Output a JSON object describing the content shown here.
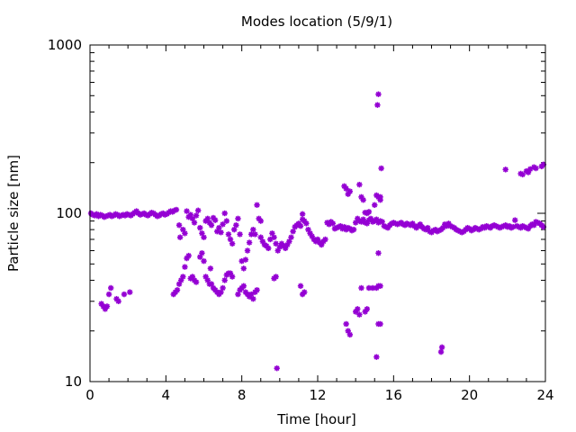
{
  "chart_data": {
    "type": "scatter",
    "title": "Modes location (5/9/1)",
    "xlabel": "Time [hour]",
    "ylabel": "Particle size [nm]",
    "xlim": [
      0,
      24
    ],
    "ylim": [
      10,
      1000
    ],
    "y_scale": "log",
    "x_ticks": [
      0,
      4,
      8,
      12,
      16,
      20,
      24
    ],
    "x_tick_labels": [
      "0",
      "4",
      "8",
      "12",
      "16",
      "20",
      "24"
    ],
    "y_ticks": [
      10,
      100,
      1000
    ],
    "y_tick_labels": [
      "10",
      "100",
      "1000"
    ],
    "grid": false,
    "marker_color": "#9400d3",
    "points": [
      [
        0.05,
        100
      ],
      [
        0.15,
        98
      ],
      [
        0.25,
        97
      ],
      [
        0.35,
        99
      ],
      [
        0.45,
        96
      ],
      [
        0.55,
        98
      ],
      [
        0.65,
        97
      ],
      [
        0.75,
        95
      ],
      [
        0.85,
        96
      ],
      [
        0.95,
        97
      ],
      [
        1.05,
        98
      ],
      [
        1.15,
        96
      ],
      [
        1.25,
        97
      ],
      [
        1.35,
        99
      ],
      [
        1.45,
        98
      ],
      [
        1.55,
        96
      ],
      [
        1.65,
        97
      ],
      [
        1.75,
        98
      ],
      [
        1.85,
        97
      ],
      [
        1.95,
        99
      ],
      [
        2.05,
        98
      ],
      [
        2.15,
        97
      ],
      [
        2.25,
        99
      ],
      [
        2.35,
        101
      ],
      [
        2.45,
        103
      ],
      [
        2.55,
        100
      ],
      [
        2.65,
        98
      ],
      [
        2.75,
        99
      ],
      [
        2.85,
        100
      ],
      [
        2.95,
        98
      ],
      [
        3.05,
        97
      ],
      [
        3.15,
        99
      ],
      [
        3.25,
        101
      ],
      [
        3.35,
        100
      ],
      [
        3.45,
        98
      ],
      [
        3.55,
        96
      ],
      [
        3.65,
        97
      ],
      [
        3.75,
        99
      ],
      [
        3.85,
        100
      ],
      [
        3.95,
        98
      ],
      [
        4.05,
        99
      ],
      [
        4.15,
        101
      ],
      [
        4.25,
        103
      ],
      [
        4.35,
        102
      ],
      [
        4.45,
        104
      ],
      [
        4.55,
        105
      ],
      [
        0.6,
        29
      ],
      [
        0.7,
        28
      ],
      [
        0.8,
        27
      ],
      [
        0.9,
        28
      ],
      [
        1.0,
        33
      ],
      [
        1.1,
        36
      ],
      [
        1.4,
        31
      ],
      [
        1.5,
        30
      ],
      [
        1.8,
        33
      ],
      [
        2.1,
        34
      ],
      [
        4.4,
        33
      ],
      [
        4.5,
        34
      ],
      [
        4.6,
        35
      ],
      [
        4.7,
        38
      ],
      [
        4.8,
        40
      ],
      [
        4.9,
        42
      ],
      [
        5.0,
        48
      ],
      [
        5.1,
        54
      ],
      [
        5.2,
        56
      ],
      [
        5.3,
        41
      ],
      [
        5.4,
        42
      ],
      [
        5.5,
        40
      ],
      [
        5.6,
        39
      ],
      [
        4.7,
        85
      ],
      [
        4.75,
        72
      ],
      [
        4.9,
        80
      ],
      [
        5.0,
        76
      ],
      [
        5.1,
        103
      ],
      [
        5.2,
        95
      ],
      [
        5.3,
        98
      ],
      [
        5.4,
        93
      ],
      [
        5.5,
        88
      ],
      [
        5.6,
        97
      ],
      [
        5.7,
        104
      ],
      [
        5.8,
        82
      ],
      [
        5.9,
        76
      ],
      [
        6.0,
        72
      ],
      [
        5.8,
        55
      ],
      [
        5.9,
        58
      ],
      [
        6.0,
        52
      ],
      [
        6.1,
        42
      ],
      [
        6.2,
        40
      ],
      [
        6.3,
        38
      ],
      [
        6.35,
        47
      ],
      [
        6.4,
        38
      ],
      [
        6.5,
        36
      ],
      [
        6.6,
        35
      ],
      [
        6.7,
        34
      ],
      [
        6.8,
        33
      ],
      [
        6.9,
        34
      ],
      [
        7.0,
        36
      ],
      [
        7.1,
        40
      ],
      [
        7.2,
        43
      ],
      [
        7.3,
        44
      ],
      [
        6.1,
        90
      ],
      [
        6.2,
        93
      ],
      [
        6.3,
        88
      ],
      [
        6.4,
        85
      ],
      [
        6.5,
        94
      ],
      [
        6.6,
        91
      ],
      [
        6.7,
        78
      ],
      [
        6.8,
        82
      ],
      [
        6.9,
        77
      ],
      [
        7.0,
        86
      ],
      [
        7.1,
        100
      ],
      [
        7.2,
        90
      ],
      [
        7.3,
        75
      ],
      [
        7.4,
        70
      ],
      [
        7.5,
        66
      ],
      [
        7.4,
        44
      ],
      [
        7.5,
        42
      ],
      [
        7.6,
        80
      ],
      [
        7.7,
        85
      ],
      [
        7.8,
        93
      ],
      [
        7.9,
        75
      ],
      [
        8.0,
        52
      ],
      [
        8.1,
        47
      ],
      [
        8.2,
        53
      ],
      [
        7.8,
        33
      ],
      [
        7.9,
        35
      ],
      [
        8.0,
        36
      ],
      [
        8.1,
        37
      ],
      [
        8.2,
        34
      ],
      [
        8.3,
        33
      ],
      [
        8.4,
        32
      ],
      [
        8.5,
        33
      ],
      [
        8.6,
        31
      ],
      [
        8.7,
        34
      ],
      [
        8.8,
        35
      ],
      [
        8.3,
        60
      ],
      [
        8.4,
        67
      ],
      [
        8.5,
        75
      ],
      [
        8.6,
        80
      ],
      [
        8.7,
        75
      ],
      [
        8.8,
        112
      ],
      [
        8.9,
        93
      ],
      [
        9.0,
        90
      ],
      [
        9.0,
        72
      ],
      [
        9.1,
        68
      ],
      [
        9.2,
        65
      ],
      [
        9.3,
        64
      ],
      [
        9.4,
        62
      ],
      [
        9.5,
        70
      ],
      [
        9.6,
        76
      ],
      [
        9.7,
        72
      ],
      [
        9.8,
        66
      ],
      [
        9.9,
        60
      ],
      [
        10.0,
        63
      ],
      [
        10.1,
        66
      ],
      [
        10.2,
        64
      ],
      [
        10.3,
        62
      ],
      [
        10.4,
        65
      ],
      [
        10.5,
        68
      ],
      [
        10.6,
        72
      ],
      [
        10.7,
        78
      ],
      [
        10.8,
        83
      ],
      [
        10.9,
        85
      ],
      [
        11.0,
        87
      ],
      [
        11.1,
        84
      ],
      [
        11.2,
        92
      ],
      [
        11.3,
        90
      ],
      [
        11.4,
        87
      ],
      [
        11.5,
        80
      ],
      [
        11.6,
        76
      ],
      [
        11.7,
        73
      ],
      [
        11.8,
        70
      ],
      [
        11.9,
        68
      ],
      [
        12.0,
        70
      ],
      [
        12.1,
        67
      ],
      [
        12.2,
        65
      ],
      [
        12.3,
        68
      ],
      [
        12.4,
        70
      ],
      [
        9.7,
        41
      ],
      [
        9.8,
        42
      ],
      [
        9.85,
        12
      ],
      [
        11.1,
        37
      ],
      [
        11.2,
        33
      ],
      [
        11.3,
        34
      ],
      [
        11.2,
        99
      ],
      [
        12.5,
        88
      ],
      [
        12.6,
        86
      ],
      [
        12.7,
        89
      ],
      [
        12.8,
        87
      ],
      [
        12.9,
        81
      ],
      [
        13.0,
        82
      ],
      [
        13.1,
        83
      ],
      [
        13.2,
        84
      ],
      [
        13.3,
        81
      ],
      [
        13.4,
        83
      ],
      [
        13.5,
        80
      ],
      [
        13.6,
        82
      ],
      [
        13.7,
        81
      ],
      [
        13.8,
        79
      ],
      [
        13.9,
        80
      ],
      [
        14.0,
        88
      ],
      [
        14.1,
        93
      ],
      [
        14.2,
        90
      ],
      [
        14.3,
        89
      ],
      [
        14.4,
        92
      ],
      [
        14.5,
        88
      ],
      [
        14.6,
        87
      ],
      [
        14.7,
        91
      ],
      [
        14.8,
        93
      ],
      [
        14.9,
        89
      ],
      [
        15.0,
        90
      ],
      [
        15.1,
        92
      ],
      [
        15.2,
        88
      ],
      [
        15.3,
        90
      ],
      [
        15.4,
        89
      ],
      [
        13.4,
        145
      ],
      [
        13.5,
        140
      ],
      [
        13.6,
        130
      ],
      [
        13.7,
        135
      ],
      [
        14.2,
        148
      ],
      [
        14.3,
        125
      ],
      [
        14.4,
        120
      ],
      [
        14.5,
        101
      ],
      [
        14.6,
        100
      ],
      [
        14.7,
        102
      ],
      [
        15.0,
        112
      ],
      [
        15.1,
        128
      ],
      [
        15.2,
        125
      ],
      [
        15.3,
        125
      ],
      [
        15.35,
        185
      ],
      [
        13.5,
        22
      ],
      [
        13.6,
        20
      ],
      [
        13.7,
        19
      ],
      [
        14.0,
        26
      ],
      [
        14.1,
        27
      ],
      [
        14.2,
        25
      ],
      [
        14.3,
        36
      ],
      [
        14.5,
        26
      ],
      [
        14.6,
        27
      ],
      [
        14.7,
        36
      ],
      [
        14.9,
        36
      ],
      [
        15.1,
        36
      ],
      [
        15.2,
        37
      ],
      [
        15.3,
        37
      ],
      [
        15.2,
        58
      ],
      [
        15.2,
        22
      ],
      [
        15.3,
        22
      ],
      [
        15.1,
        14
      ],
      [
        15.15,
        440
      ],
      [
        15.2,
        510
      ],
      [
        15.3,
        120
      ],
      [
        15.5,
        84
      ],
      [
        15.6,
        83
      ],
      [
        15.7,
        82
      ],
      [
        15.8,
        85
      ],
      [
        15.9,
        87
      ],
      [
        16.0,
        88
      ],
      [
        16.1,
        87
      ],
      [
        16.2,
        86
      ],
      [
        16.3,
        87
      ],
      [
        16.4,
        88
      ],
      [
        16.5,
        86
      ],
      [
        16.6,
        85
      ],
      [
        16.7,
        87
      ],
      [
        16.8,
        86
      ],
      [
        16.9,
        85
      ],
      [
        17.0,
        87
      ],
      [
        17.1,
        84
      ],
      [
        17.2,
        82
      ],
      [
        17.3,
        84
      ],
      [
        17.4,
        86
      ],
      [
        17.5,
        83
      ],
      [
        17.6,
        81
      ],
      [
        17.7,
        80
      ],
      [
        17.8,
        82
      ],
      [
        17.9,
        78
      ],
      [
        18.0,
        77
      ],
      [
        18.1,
        79
      ],
      [
        18.2,
        80
      ],
      [
        18.3,
        78
      ],
      [
        18.4,
        79
      ],
      [
        18.5,
        80
      ],
      [
        18.6,
        82
      ],
      [
        18.7,
        86
      ],
      [
        18.8,
        84
      ],
      [
        18.9,
        87
      ],
      [
        19.0,
        84
      ],
      [
        19.1,
        83
      ],
      [
        19.2,
        82
      ],
      [
        19.3,
        80
      ],
      [
        19.4,
        79
      ],
      [
        19.5,
        78
      ],
      [
        19.6,
        77
      ],
      [
        19.7,
        78
      ],
      [
        19.8,
        80
      ],
      [
        19.9,
        82
      ],
      [
        20.0,
        81
      ],
      [
        20.1,
        79
      ],
      [
        20.2,
        80
      ],
      [
        20.3,
        82
      ],
      [
        20.4,
        81
      ],
      [
        20.5,
        80
      ],
      [
        20.6,
        81
      ],
      [
        20.7,
        83
      ],
      [
        20.8,
        82
      ],
      [
        20.9,
        84
      ],
      [
        21.0,
        83
      ],
      [
        21.1,
        82
      ],
      [
        21.2,
        84
      ],
      [
        21.3,
        85
      ],
      [
        21.4,
        84
      ],
      [
        21.5,
        83
      ],
      [
        21.6,
        82
      ],
      [
        21.7,
        83
      ],
      [
        21.8,
        84
      ],
      [
        21.9,
        85
      ],
      [
        22.0,
        83
      ],
      [
        22.1,
        84
      ],
      [
        22.2,
        82
      ],
      [
        22.3,
        83
      ],
      [
        22.4,
        91
      ],
      [
        22.5,
        84
      ],
      [
        22.6,
        83
      ],
      [
        22.7,
        82
      ],
      [
        22.8,
        84
      ],
      [
        22.9,
        83
      ],
      [
        23.0,
        82
      ],
      [
        23.1,
        81
      ],
      [
        23.2,
        84
      ],
      [
        23.3,
        86
      ],
      [
        23.4,
        85
      ],
      [
        23.5,
        89
      ],
      [
        23.6,
        88
      ],
      [
        23.7,
        87
      ],
      [
        23.8,
        85
      ],
      [
        23.9,
        83
      ],
      [
        18.5,
        15
      ],
      [
        18.55,
        16
      ],
      [
        21.9,
        182
      ],
      [
        22.7,
        172
      ],
      [
        22.8,
        170
      ],
      [
        23.0,
        178
      ],
      [
        23.1,
        175
      ],
      [
        23.2,
        183
      ],
      [
        23.4,
        188
      ],
      [
        23.5,
        185
      ],
      [
        23.8,
        190
      ],
      [
        23.9,
        195
      ]
    ]
  }
}
